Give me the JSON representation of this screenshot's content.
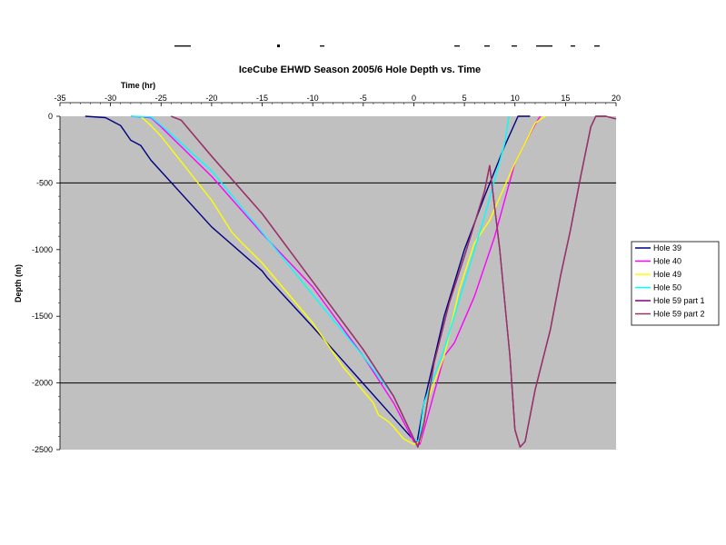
{
  "chart_data": {
    "type": "line",
    "title": "IceCube EHWD Season 2005/6 Hole Depth vs. Time",
    "xlabel": "Time (hr)",
    "ylabel": "Depth (m)",
    "xlim": [
      -35,
      20
    ],
    "ylim": [
      -2500,
      0
    ],
    "x_ticks": [
      -35,
      -30,
      -25,
      -20,
      -15,
      -10,
      -5,
      0,
      5,
      10,
      15,
      20
    ],
    "y_ticks": [
      0,
      -500,
      -1000,
      -1500,
      -2000,
      -2500
    ],
    "x_tick_labels": [
      "-35",
      "-30",
      "-25",
      "-20",
      "-15",
      "-10",
      "-5",
      "0",
      "5",
      "10",
      "15",
      "20"
    ],
    "y_tick_labels": [
      "0",
      "-500",
      "-1000",
      "-1500",
      "-2000",
      "-2500"
    ],
    "gridlines_y": [
      -500,
      -2000
    ],
    "plot_background": "#c0c0c0",
    "legend_position": "right",
    "series": [
      {
        "name": "Hole 39",
        "color": "#000080",
        "points": [
          [
            -32.5,
            0
          ],
          [
            -30.5,
            -10
          ],
          [
            -30,
            -30
          ],
          [
            -29,
            -70
          ],
          [
            -28,
            -180
          ],
          [
            -27,
            -220
          ],
          [
            -26,
            -330
          ],
          [
            -20,
            -830
          ],
          [
            -15,
            -1160
          ],
          [
            -14.5,
            -1210
          ],
          [
            -10,
            -1580
          ],
          [
            -6,
            -1920
          ],
          [
            -2,
            -2260
          ],
          [
            0,
            -2430
          ],
          [
            0.3,
            -2450
          ],
          [
            1,
            -2150
          ],
          [
            3,
            -1500
          ],
          [
            5,
            -1000
          ],
          [
            7,
            -600
          ],
          [
            9,
            -220
          ],
          [
            10.3,
            0
          ],
          [
            11.5,
            0
          ]
        ]
      },
      {
        "name": "Hole 40",
        "color": "#ff00ff",
        "points": [
          [
            -28,
            0
          ],
          [
            -26,
            -10
          ],
          [
            -25,
            -80
          ],
          [
            -20,
            -450
          ],
          [
            -15,
            -880
          ],
          [
            -10,
            -1280
          ],
          [
            -5,
            -1800
          ],
          [
            -2,
            -2150
          ],
          [
            0,
            -2440
          ],
          [
            0.6,
            -2460
          ],
          [
            1.2,
            -2300
          ],
          [
            3,
            -1800
          ],
          [
            4,
            -1700
          ],
          [
            6,
            -1350
          ],
          [
            8,
            -900
          ],
          [
            10,
            -350
          ],
          [
            11,
            -200
          ],
          [
            12,
            -60
          ],
          [
            12.5,
            0
          ]
        ]
      },
      {
        "name": "Hole 49",
        "color": "#ffff00",
        "points": [
          [
            -27,
            0
          ],
          [
            -26,
            -70
          ],
          [
            -25,
            -150
          ],
          [
            -20,
            -630
          ],
          [
            -18,
            -870
          ],
          [
            -17,
            -950
          ],
          [
            -15,
            -1100
          ],
          [
            -10,
            -1550
          ],
          [
            -7,
            -1880
          ],
          [
            -4,
            -2150
          ],
          [
            -3.5,
            -2240
          ],
          [
            -2.5,
            -2290
          ],
          [
            -2,
            -2330
          ],
          [
            -1,
            -2420
          ],
          [
            0,
            -2460
          ],
          [
            0.6,
            -2440
          ],
          [
            1.5,
            -2100
          ],
          [
            3,
            -1800
          ],
          [
            4.5,
            -1300
          ],
          [
            6,
            -950
          ],
          [
            7.5,
            -780
          ],
          [
            10,
            -350
          ],
          [
            11,
            -200
          ],
          [
            12,
            -50
          ],
          [
            13,
            0
          ]
        ]
      },
      {
        "name": "Hole 50",
        "color": "#00ffff",
        "points": [
          [
            -28,
            0
          ],
          [
            -26,
            -5
          ],
          [
            -24.5,
            -100
          ],
          [
            -20,
            -410
          ],
          [
            -15,
            -870
          ],
          [
            -10,
            -1340
          ],
          [
            -5,
            -1800
          ],
          [
            -2,
            -2100
          ],
          [
            0,
            -2420
          ],
          [
            0.5,
            -2440
          ],
          [
            1,
            -2150
          ],
          [
            3,
            -1750
          ],
          [
            5,
            -1250
          ],
          [
            7,
            -750
          ],
          [
            9,
            -200
          ],
          [
            9.4,
            0
          ]
        ]
      },
      {
        "name": "Hole 59 part 1",
        "color": "#800080",
        "points": [
          [
            -24,
            0
          ],
          [
            -23,
            -30
          ],
          [
            -20,
            -300
          ],
          [
            -15,
            -730
          ],
          [
            -10,
            -1240
          ],
          [
            -5,
            -1750
          ],
          [
            -2,
            -2100
          ],
          [
            0,
            -2420
          ],
          [
            0.4,
            -2480
          ],
          [
            1,
            -2300
          ],
          [
            2,
            -1850
          ],
          [
            3.5,
            -1400
          ],
          [
            5,
            -1050
          ],
          [
            7,
            -560
          ],
          [
            7.5,
            -370
          ],
          [
            8.5,
            -1000
          ],
          [
            9.5,
            -1800
          ],
          [
            10,
            -2350
          ],
          [
            10.5,
            -2480
          ],
          [
            11,
            -2440
          ],
          [
            12,
            -2050
          ],
          [
            13.5,
            -1600
          ],
          [
            14.5,
            -1200
          ],
          [
            15.5,
            -850
          ],
          [
            16.5,
            -450
          ],
          [
            17.5,
            -80
          ],
          [
            18,
            0
          ],
          [
            19,
            0
          ],
          [
            20,
            -20
          ]
        ]
      },
      {
        "name": "Hole 59 part 2",
        "color": "#993366",
        "points": [
          [
            -24,
            0
          ],
          [
            -23,
            -30
          ],
          [
            -20,
            -300
          ],
          [
            -15,
            -730
          ],
          [
            -10,
            -1240
          ],
          [
            -5,
            -1750
          ],
          [
            -2,
            -2100
          ],
          [
            0,
            -2420
          ],
          [
            0.4,
            -2480
          ],
          [
            1,
            -2300
          ],
          [
            2,
            -1850
          ],
          [
            3.5,
            -1400
          ],
          [
            5,
            -1050
          ],
          [
            7,
            -560
          ],
          [
            7.5,
            -370
          ],
          [
            8.5,
            -1000
          ],
          [
            9.5,
            -1800
          ],
          [
            10,
            -2350
          ],
          [
            10.5,
            -2480
          ],
          [
            11,
            -2440
          ],
          [
            12,
            -2050
          ],
          [
            13.5,
            -1600
          ],
          [
            14.5,
            -1200
          ],
          [
            15.5,
            -850
          ],
          [
            16.5,
            -450
          ],
          [
            17.5,
            -80
          ],
          [
            18,
            0
          ],
          [
            19,
            0
          ],
          [
            20,
            -20
          ]
        ]
      }
    ]
  }
}
